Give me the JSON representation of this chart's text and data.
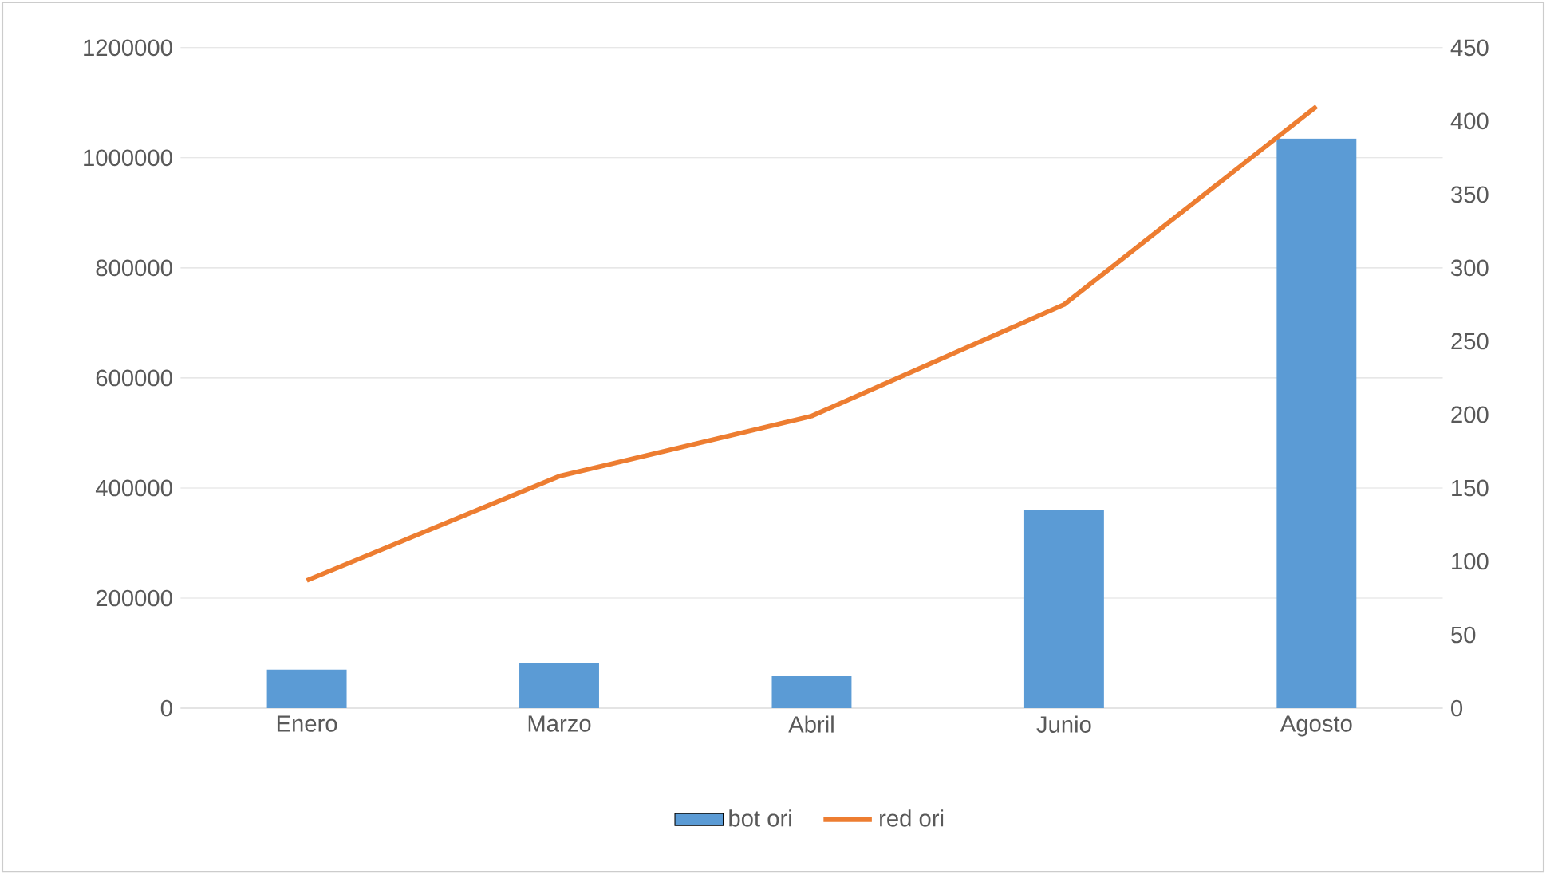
{
  "chart_data": {
    "type": "bar",
    "categories": [
      "Enero",
      "Marzo",
      "Abril",
      "Junio",
      "Agosto"
    ],
    "series": [
      {
        "name": "bot ori",
        "color": "#5b9bd5",
        "values": [
          70000,
          82000,
          58000,
          360000,
          1035000
        ]
      },
      {
        "name": "red ori",
        "type": "line",
        "axis": "y2",
        "color": "#ed7d31",
        "values": [
          87,
          158,
          199,
          275,
          410
        ]
      }
    ],
    "ylim": [
      0,
      1200000
    ],
    "yticks": [
      0,
      200000,
      400000,
      600000,
      800000,
      1000000,
      1200000
    ],
    "y2lim": [
      0,
      450
    ],
    "y2ticks": [
      0,
      50,
      100,
      150,
      200,
      250,
      300,
      350,
      400,
      450
    ],
    "grid": "y",
    "legend": "bottom",
    "marker": "none",
    "line_style": "solid"
  }
}
